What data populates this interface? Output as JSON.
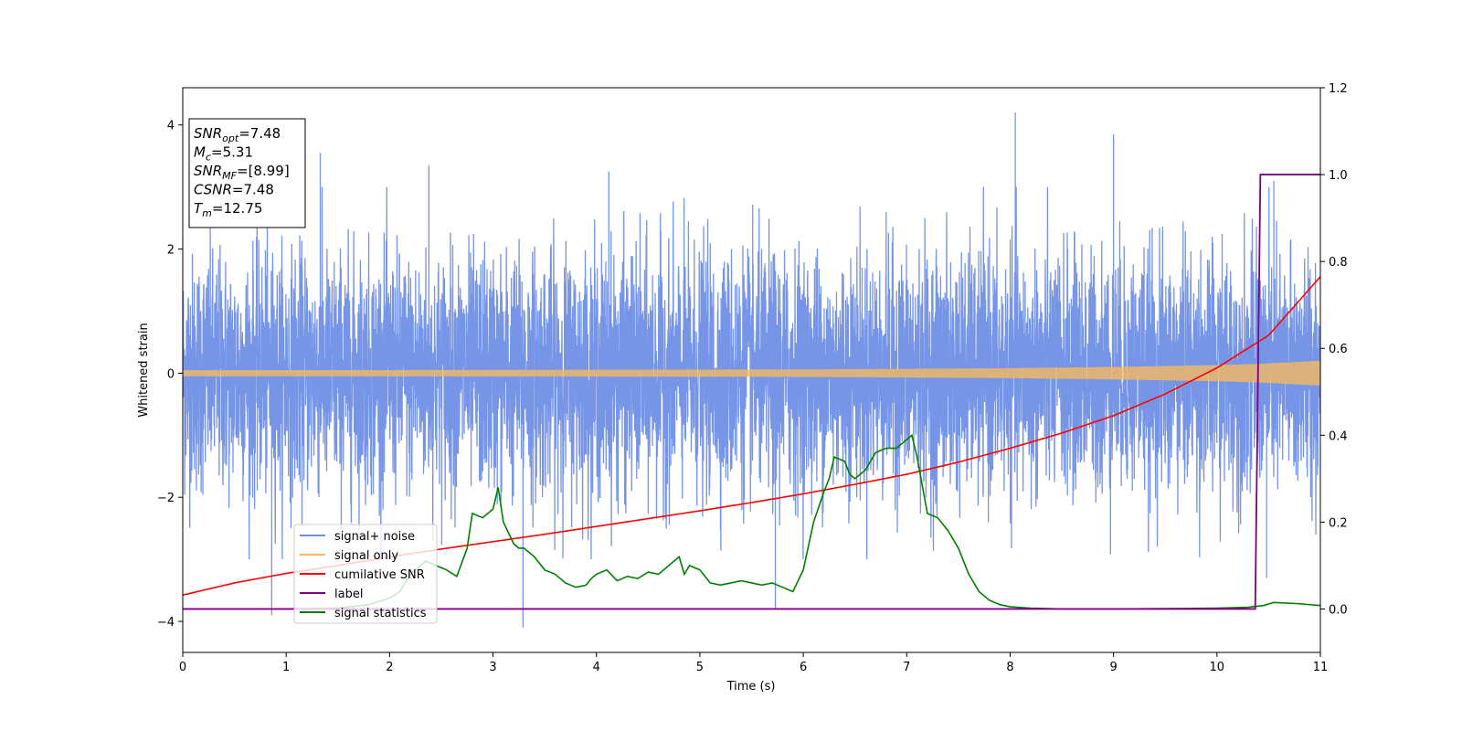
{
  "chart_data": {
    "type": "line",
    "title": "",
    "xlabel": "Time (s)",
    "ylabel": "Whitened strain",
    "y2label": "",
    "xlim": [
      0,
      11
    ],
    "ylim": [
      -4.5,
      4.6
    ],
    "y2lim": [
      -0.1,
      1.2
    ],
    "x_ticks": [
      0,
      1,
      2,
      3,
      4,
      5,
      6,
      7,
      8,
      9,
      10,
      11
    ],
    "y_ticks": [
      -4,
      -2,
      0,
      2,
      4
    ],
    "y2_ticks": [
      "0.0",
      "0.2",
      "0.4",
      "0.6",
      "0.8",
      "1.0",
      "1.2"
    ],
    "grid": false,
    "legend_position": "lower-left",
    "colors": {
      "signal_noise": "#6f8fe6",
      "signal_only": "#f5b961",
      "cumulative_snr": "#ff0000",
      "label": "#800080",
      "signal_statistics": "#008000"
    },
    "series": [
      {
        "name": "signal+ noise",
        "axis": "left",
        "note_values": "dense noise band, roughly between -2.5 and 2.5 with spikes up to 4.2 and down to -4.1",
        "envelope": {
          "x": [
            0,
            11
          ],
          "upper_typical": 2.4,
          "lower_typical": -2.4
        },
        "spikes": [
          {
            "x": 0.86,
            "y": -3.9
          },
          {
            "x": 1.33,
            "y": 3.55
          },
          {
            "x": 2.38,
            "y": 3.35
          },
          {
            "x": 3.29,
            "y": -4.1
          },
          {
            "x": 4.12,
            "y": 3.25
          },
          {
            "x": 5.73,
            "y": -3.8
          },
          {
            "x": 8.05,
            "y": 4.2
          },
          {
            "x": 9.0,
            "y": 3.85
          },
          {
            "x": 10.48,
            "y": -3.3
          },
          {
            "x": 10.55,
            "y": 3.1
          }
        ]
      },
      {
        "name": "signal only",
        "axis": "left",
        "amplitude": {
          "x": [
            0,
            2,
            4,
            6,
            8,
            9,
            10,
            10.4,
            11
          ],
          "y": [
            0.05,
            0.05,
            0.055,
            0.06,
            0.08,
            0.1,
            0.13,
            0.15,
            0.2
          ]
        }
      },
      {
        "name": "cumilative SNR",
        "axis": "right",
        "x": [
          0,
          0.5,
          1,
          1.5,
          2,
          2.5,
          3,
          3.5,
          4,
          4.5,
          5,
          5.5,
          6,
          6.5,
          7,
          7.5,
          8,
          8.5,
          9,
          9.5,
          10,
          10.5,
          11
        ],
        "y": [
          0.032,
          0.06,
          0.082,
          0.1,
          0.12,
          0.138,
          0.155,
          0.172,
          0.19,
          0.208,
          0.226,
          0.245,
          0.265,
          0.287,
          0.31,
          0.338,
          0.37,
          0.405,
          0.445,
          0.495,
          0.555,
          0.63,
          0.765
        ]
      },
      {
        "name": "label",
        "axis": "right",
        "x": [
          0,
          10.37,
          10.42,
          11
        ],
        "y": [
          0.0,
          0.0,
          1.0,
          1.0
        ]
      },
      {
        "name": "signal statistics",
        "axis": "right",
        "x": [
          0,
          0.5,
          1,
          1.5,
          1.8,
          2.0,
          2.1,
          2.2,
          2.3,
          2.35,
          2.45,
          2.55,
          2.65,
          2.75,
          2.8,
          2.9,
          2.95,
          3.0,
          3.05,
          3.1,
          3.2,
          3.25,
          3.3,
          3.4,
          3.5,
          3.6,
          3.7,
          3.8,
          3.9,
          3.95,
          4.0,
          4.1,
          4.2,
          4.3,
          4.4,
          4.5,
          4.6,
          4.7,
          4.8,
          4.85,
          4.9,
          5.0,
          5.1,
          5.2,
          5.3,
          5.4,
          5.5,
          5.6,
          5.7,
          5.8,
          5.9,
          6.0,
          6.1,
          6.2,
          6.25,
          6.3,
          6.4,
          6.45,
          6.5,
          6.6,
          6.7,
          6.8,
          6.9,
          6.95,
          7.0,
          7.05,
          7.1,
          7.2,
          7.3,
          7.4,
          7.5,
          7.6,
          7.7,
          7.8,
          7.9,
          8.0,
          8.2,
          8.5,
          9.0,
          9.5,
          10.0,
          10.3,
          10.45,
          10.55,
          10.8,
          11
        ],
        "y": [
          0.0,
          0.0,
          0.0,
          0.002,
          0.01,
          0.025,
          0.04,
          0.08,
          0.1,
          0.11,
          0.1,
          0.09,
          0.075,
          0.14,
          0.22,
          0.21,
          0.22,
          0.23,
          0.28,
          0.2,
          0.15,
          0.14,
          0.14,
          0.12,
          0.09,
          0.08,
          0.06,
          0.05,
          0.055,
          0.07,
          0.08,
          0.09,
          0.065,
          0.075,
          0.07,
          0.085,
          0.08,
          0.1,
          0.12,
          0.08,
          0.1,
          0.09,
          0.06,
          0.055,
          0.06,
          0.065,
          0.06,
          0.055,
          0.06,
          0.05,
          0.04,
          0.09,
          0.2,
          0.27,
          0.3,
          0.35,
          0.34,
          0.31,
          0.3,
          0.32,
          0.36,
          0.37,
          0.37,
          0.38,
          0.39,
          0.4,
          0.35,
          0.22,
          0.21,
          0.18,
          0.14,
          0.08,
          0.04,
          0.02,
          0.01,
          0.005,
          0.002,
          0.0,
          0.0,
          0.001,
          0.002,
          0.004,
          0.008,
          0.015,
          0.012,
          0.008
        ]
      }
    ],
    "annotation_box": {
      "lines": [
        {
          "main": "SNR",
          "sub": "opt",
          "value": "=7.48"
        },
        {
          "main": "M",
          "sub": "c",
          "value": "=5.31"
        },
        {
          "main": "SNR",
          "sub": "MF",
          "value": "=[8.99]"
        },
        {
          "main": "CSNR",
          "sub": "",
          "value": "=7.48"
        },
        {
          "main": "T",
          "sub": "m",
          "value": "=12.75"
        }
      ]
    }
  }
}
